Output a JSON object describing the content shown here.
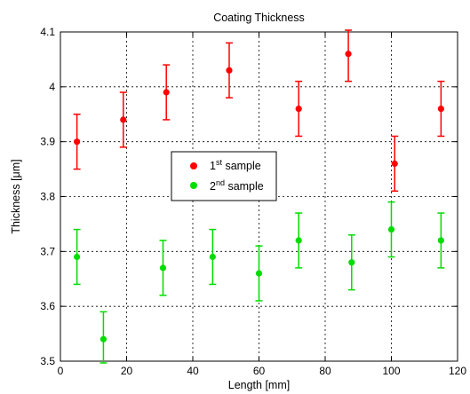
{
  "chart_data": {
    "type": "scatter",
    "title": "Coating Thickness",
    "xlabel": "Length [mm]",
    "ylabel_prefix": "Thickness [",
    "ylabel_mu": "μ",
    "ylabel_suffix": "m]",
    "xlim": [
      0,
      120
    ],
    "ylim": [
      3.5,
      4.1
    ],
    "xticks": [
      0,
      20,
      40,
      60,
      80,
      100,
      120
    ],
    "yticks": [
      3.5,
      3.6,
      3.7,
      3.8,
      3.9,
      4.0,
      4.1
    ],
    "xtick_labels": [
      "0",
      "20",
      "40",
      "60",
      "80",
      "100",
      "120"
    ],
    "ytick_labels": [
      "3.5",
      "3.6",
      "3.7",
      "3.8",
      "3.9",
      "4",
      "4.1"
    ],
    "grid": true,
    "legend_position": "center-left",
    "series": [
      {
        "legend_base": "1",
        "legend_sup": "st",
        "legend_suffix": " sample",
        "color": "#ff0000",
        "x": [
          5,
          19,
          32,
          51,
          72,
          87,
          101,
          115
        ],
        "y": [
          3.9,
          3.94,
          3.99,
          4.03,
          3.96,
          4.06,
          3.86,
          3.96
        ],
        "err": [
          0.05,
          0.05,
          0.05,
          0.05,
          0.05,
          0.05,
          0.05,
          0.05
        ]
      },
      {
        "legend_base": "2",
        "legend_sup": "nd",
        "legend_suffix": " sample",
        "color": "#00dd00",
        "x": [
          5,
          13,
          31,
          46,
          60,
          72,
          88,
          100,
          115
        ],
        "y": [
          3.69,
          3.54,
          3.67,
          3.69,
          3.66,
          3.72,
          3.68,
          3.74,
          3.72
        ],
        "err": [
          0.05,
          0.05,
          0.05,
          0.05,
          0.05,
          0.05,
          0.05,
          0.05,
          0.05
        ]
      }
    ]
  }
}
